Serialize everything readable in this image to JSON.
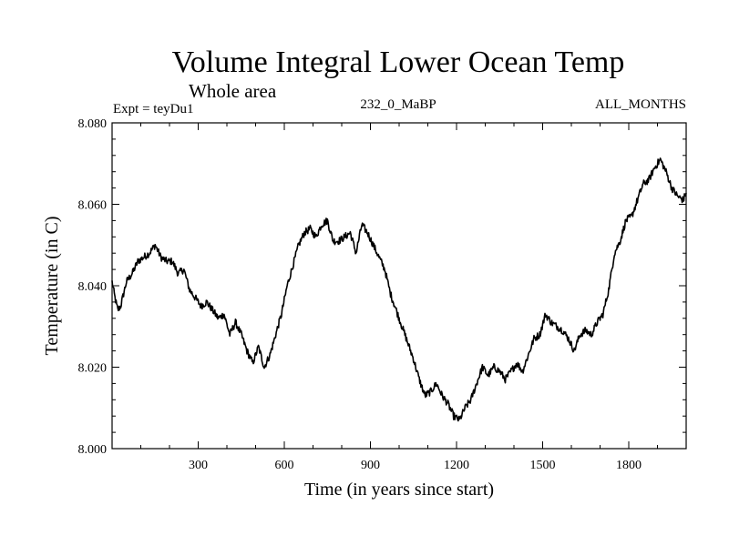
{
  "chart_data": {
    "type": "line",
    "title": "Volume Integral Lower Ocean Temp",
    "subtitle": "Whole area",
    "left_label": "Expt = teyDu1",
    "center_label": "232_0_MaBP",
    "right_label": "ALL_MONTHS",
    "xlabel": "Time (in years since start)",
    "ylabel": "Temperature (in C)",
    "xlim": [
      0,
      2000
    ],
    "ylim": [
      8.0,
      8.08
    ],
    "x_ticks": [
      300,
      600,
      900,
      1200,
      1500,
      1800
    ],
    "x_tick_labels": [
      "300",
      "600",
      "900",
      "1200",
      "1500",
      "1800"
    ],
    "y_ticks": [
      8.0,
      8.02,
      8.04,
      8.06,
      8.08
    ],
    "y_tick_labels": [
      "8.000",
      "8.020",
      "8.040",
      "8.060",
      "8.080"
    ],
    "series": [
      {
        "name": "teyDu1",
        "x": [
          0,
          10,
          20,
          30,
          50,
          70,
          90,
          110,
          130,
          150,
          170,
          190,
          210,
          230,
          250,
          270,
          290,
          310,
          330,
          350,
          370,
          390,
          410,
          430,
          450,
          470,
          490,
          510,
          530,
          550,
          570,
          590,
          610,
          630,
          650,
          670,
          690,
          710,
          730,
          750,
          770,
          790,
          810,
          830,
          850,
          870,
          890,
          910,
          930,
          950,
          970,
          990,
          1010,
          1030,
          1050,
          1070,
          1090,
          1110,
          1130,
          1150,
          1170,
          1190,
          1210,
          1230,
          1250,
          1270,
          1290,
          1310,
          1330,
          1350,
          1370,
          1390,
          1410,
          1430,
          1450,
          1470,
          1490,
          1510,
          1530,
          1550,
          1570,
          1590,
          1610,
          1630,
          1650,
          1670,
          1690,
          1710,
          1730,
          1750,
          1770,
          1790,
          1810,
          1830,
          1850,
          1870,
          1890,
          1910,
          1930,
          1950,
          1970,
          1990,
          2000
        ],
        "values": [
          8.041,
          8.037,
          8.034,
          8.035,
          8.041,
          8.043,
          8.046,
          8.047,
          8.048,
          8.05,
          8.047,
          8.046,
          8.046,
          8.043,
          8.044,
          8.039,
          8.037,
          8.035,
          8.036,
          8.034,
          8.032,
          8.033,
          8.028,
          8.031,
          8.028,
          8.024,
          8.021,
          8.025,
          8.02,
          8.023,
          8.028,
          8.033,
          8.04,
          8.045,
          8.05,
          8.053,
          8.054,
          8.052,
          8.055,
          8.056,
          8.051,
          8.051,
          8.052,
          8.053,
          8.048,
          8.055,
          8.053,
          8.05,
          8.047,
          8.044,
          8.038,
          8.034,
          8.03,
          8.026,
          8.022,
          8.017,
          8.013,
          8.014,
          8.016,
          8.013,
          8.011,
          8.008,
          8.007,
          8.01,
          8.012,
          8.016,
          8.02,
          8.018,
          8.02,
          8.019,
          8.017,
          8.019,
          8.021,
          8.019,
          8.023,
          8.027,
          8.028,
          8.033,
          8.031,
          8.03,
          8.029,
          8.027,
          8.024,
          8.028,
          8.029,
          8.028,
          8.031,
          8.033,
          8.039,
          8.048,
          8.051,
          8.056,
          8.057,
          8.061,
          8.065,
          8.066,
          8.069,
          8.071,
          8.068,
          8.064,
          8.062,
          8.061,
          8.063
        ]
      }
    ]
  }
}
